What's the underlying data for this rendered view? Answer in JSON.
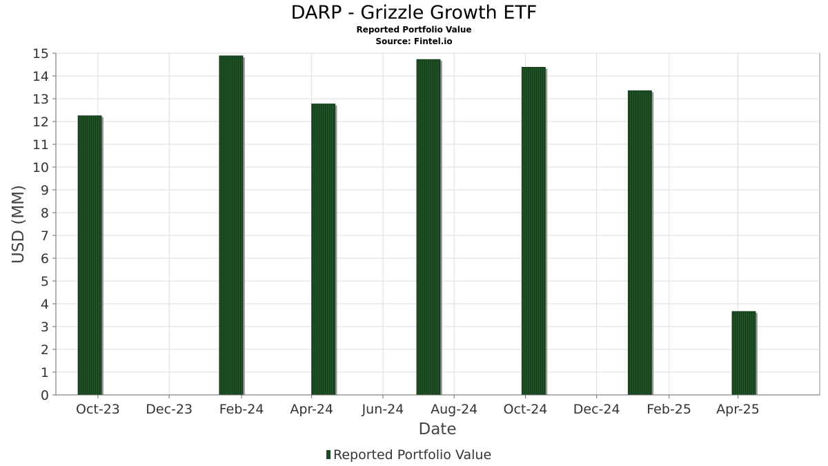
{
  "chart_data": {
    "type": "bar",
    "title": "DARP - Grizzle Growth ETF",
    "subtitle": "Reported Portfolio Value",
    "source": "Source: Fintel.io",
    "xlabel": "Date",
    "ylabel": "USD (MM)",
    "ylim": [
      0,
      15
    ],
    "yticks": [
      "0",
      "1",
      "2",
      "3",
      "4",
      "5",
      "6",
      "7",
      "8",
      "9",
      "10",
      "11",
      "12",
      "13",
      "14",
      "15"
    ],
    "xlim": [
      "2023-08-26",
      "2025-06-10"
    ],
    "xticks": [
      {
        "label": "Oct-23",
        "date": "2023-10-01"
      },
      {
        "label": "Dec-23",
        "date": "2023-12-01"
      },
      {
        "label": "Feb-24",
        "date": "2024-02-01"
      },
      {
        "label": "Apr-24",
        "date": "2024-04-01"
      },
      {
        "label": "Jun-24",
        "date": "2024-06-01"
      },
      {
        "label": "Aug-24",
        "date": "2024-08-01"
      },
      {
        "label": "Oct-24",
        "date": "2024-10-01"
      },
      {
        "label": "Dec-24",
        "date": "2024-12-01"
      },
      {
        "label": "Feb-25",
        "date": "2025-02-01"
      },
      {
        "label": "Apr-25",
        "date": "2025-04-01"
      }
    ],
    "grid": true,
    "legend_position": "bottom",
    "series": [
      {
        "name": "Reported Portfolio Value",
        "color": "#1d4a24",
        "points": [
          {
            "start": "2023-09-14",
            "end": "2023-10-04",
            "value": 12.25
          },
          {
            "start": "2024-01-13",
            "end": "2024-02-02",
            "value": 14.88
          },
          {
            "start": "2024-04-01",
            "end": "2024-04-21",
            "value": 12.77
          },
          {
            "start": "2024-06-30",
            "end": "2024-07-20",
            "value": 14.72
          },
          {
            "start": "2024-09-28",
            "end": "2024-10-18",
            "value": 14.38
          },
          {
            "start": "2024-12-28",
            "end": "2025-01-17",
            "value": 13.35
          },
          {
            "start": "2025-03-27",
            "end": "2025-04-16",
            "value": 3.66
          }
        ]
      }
    ]
  }
}
